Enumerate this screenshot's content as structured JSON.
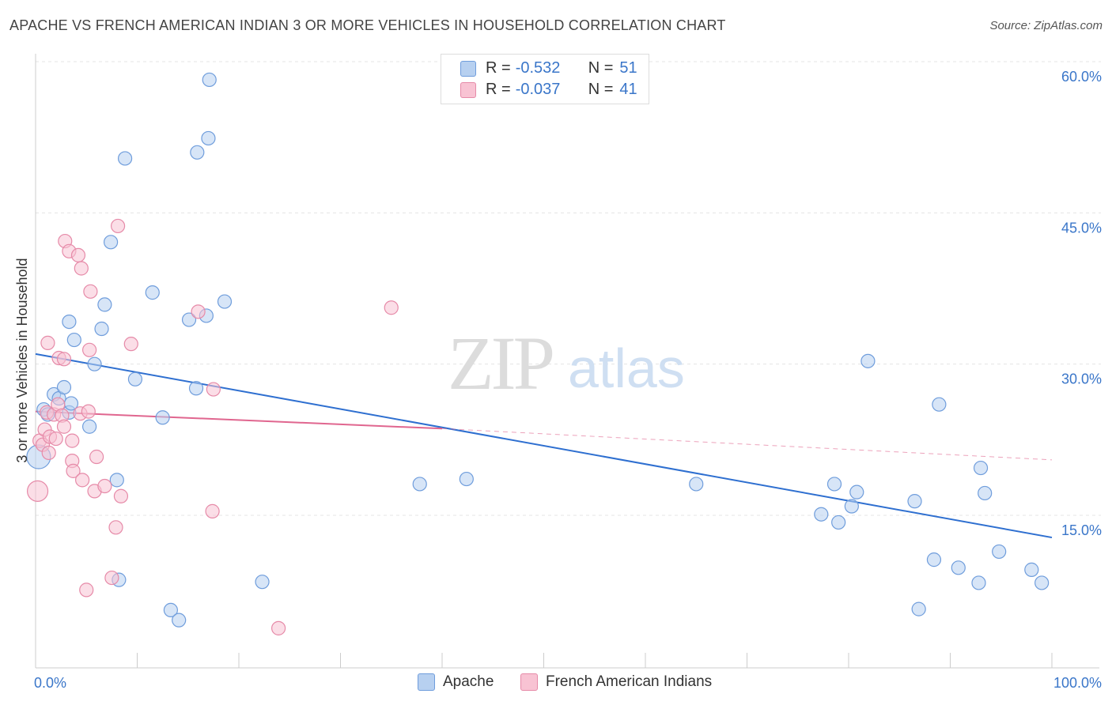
{
  "title": "APACHE VS FRENCH AMERICAN INDIAN 3 OR MORE VEHICLES IN HOUSEHOLD CORRELATION CHART",
  "source": "Source: ZipAtlas.com",
  "watermark": {
    "zip": "ZIP",
    "atlas": "atlas"
  },
  "legend": {
    "rows": [
      {
        "r_label": "R =",
        "r_value": "-0.532",
        "n_label": "N =",
        "n_value": "51"
      },
      {
        "r_label": "R =",
        "r_value": "-0.037",
        "n_label": "N =",
        "n_value": "41"
      }
    ]
  },
  "bottom_legend": {
    "apache": "Apache",
    "french": "French American Indians"
  },
  "colors": {
    "apache_fill": "#b7d0f0",
    "apache_stroke": "#6f9ddc",
    "apache_line": "#2e6fd0",
    "french_fill": "#f8c3d3",
    "french_stroke": "#e68aa8",
    "french_line": "#e0668f",
    "axis_text": "#3a76c9",
    "grid": "#e4e4e4"
  },
  "chart_data": {
    "type": "scatter",
    "title": "APACHE VS FRENCH AMERICAN INDIAN 3 OR MORE VEHICLES IN HOUSEHOLD CORRELATION CHART",
    "xlabel": "",
    "ylabel": "3 or more Vehicles in Household",
    "x_tick_labels": [
      "0.0%",
      "100.0%"
    ],
    "y_tick_labels": [
      "15.0%",
      "30.0%",
      "45.0%",
      "60.0%"
    ],
    "y_ticks": [
      15,
      30,
      45,
      60
    ],
    "xlim": [
      0,
      100
    ],
    "ylim": [
      0,
      62
    ],
    "grid": true,
    "legend_position": "top-center",
    "series": [
      {
        "name": "Apache",
        "r": -0.532,
        "n": 51,
        "trend": {
          "x0": 0,
          "y0": 31.0,
          "x1": 100,
          "y1": 12.8
        },
        "points": [
          [
            0.3,
            20.8
          ],
          [
            0.8,
            25.5
          ],
          [
            1.2,
            25.0
          ],
          [
            1.8,
            27.0
          ],
          [
            2.3,
            26.6
          ],
          [
            2.8,
            27.7
          ],
          [
            3.3,
            25.2
          ],
          [
            3.5,
            26.1
          ],
          [
            3.3,
            34.2
          ],
          [
            3.8,
            32.4
          ],
          [
            5.3,
            23.8
          ],
          [
            5.8,
            30.0
          ],
          [
            6.5,
            33.5
          ],
          [
            6.8,
            35.9
          ],
          [
            7.4,
            42.1
          ],
          [
            8.0,
            18.5
          ],
          [
            8.2,
            8.6
          ],
          [
            8.8,
            50.4
          ],
          [
            9.8,
            28.5
          ],
          [
            11.5,
            37.1
          ],
          [
            12.5,
            24.7
          ],
          [
            13.3,
            5.6
          ],
          [
            14.1,
            4.6
          ],
          [
            15.1,
            34.4
          ],
          [
            15.8,
            27.6
          ],
          [
            15.9,
            51.0
          ],
          [
            16.8,
            34.8
          ],
          [
            17.0,
            52.4
          ],
          [
            17.1,
            58.2
          ],
          [
            18.6,
            36.2
          ],
          [
            22.3,
            8.4
          ],
          [
            37.8,
            18.1
          ],
          [
            42.4,
            18.6
          ],
          [
            65.0,
            18.1
          ],
          [
            77.3,
            15.1
          ],
          [
            78.6,
            18.1
          ],
          [
            79.0,
            14.3
          ],
          [
            80.3,
            15.9
          ],
          [
            80.8,
            17.3
          ],
          [
            81.9,
            30.3
          ],
          [
            86.5,
            16.4
          ],
          [
            86.9,
            5.7
          ],
          [
            88.4,
            10.6
          ],
          [
            88.9,
            26.0
          ],
          [
            90.8,
            9.8
          ],
          [
            92.8,
            8.3
          ],
          [
            93.0,
            19.7
          ],
          [
            93.4,
            17.2
          ],
          [
            94.8,
            11.4
          ],
          [
            98.0,
            9.6
          ],
          [
            99.0,
            8.3
          ]
        ]
      },
      {
        "name": "French American Indians",
        "r": -0.037,
        "n": 41,
        "trend": {
          "x0": 0,
          "y0": 25.3,
          "x1": 40,
          "y1": 23.6
        },
        "trend_dashed": {
          "x0": 40,
          "y0": 23.6,
          "x1": 100,
          "y1": 20.5
        },
        "points": [
          [
            0.2,
            17.4
          ],
          [
            0.4,
            22.4
          ],
          [
            0.7,
            22.0
          ],
          [
            0.9,
            23.5
          ],
          [
            1.1,
            25.2
          ],
          [
            1.3,
            21.2
          ],
          [
            1.2,
            32.1
          ],
          [
            1.4,
            22.8
          ],
          [
            1.8,
            25.0
          ],
          [
            2.0,
            22.6
          ],
          [
            2.2,
            26.0
          ],
          [
            2.3,
            30.6
          ],
          [
            2.6,
            24.9
          ],
          [
            2.8,
            30.5
          ],
          [
            2.8,
            23.8
          ],
          [
            2.9,
            42.2
          ],
          [
            3.3,
            41.2
          ],
          [
            3.6,
            22.4
          ],
          [
            3.6,
            20.4
          ],
          [
            3.7,
            19.4
          ],
          [
            4.2,
            40.8
          ],
          [
            4.4,
            25.1
          ],
          [
            4.5,
            39.5
          ],
          [
            4.6,
            18.5
          ],
          [
            5.0,
            7.6
          ],
          [
            5.3,
            31.4
          ],
          [
            5.4,
            37.2
          ],
          [
            5.8,
            17.4
          ],
          [
            6.0,
            20.8
          ],
          [
            6.8,
            17.9
          ],
          [
            7.5,
            8.8
          ],
          [
            7.9,
            13.8
          ],
          [
            8.1,
            43.7
          ],
          [
            8.4,
            16.9
          ],
          [
            9.4,
            32.0
          ],
          [
            16.0,
            35.2
          ],
          [
            17.4,
            15.4
          ],
          [
            17.5,
            27.5
          ],
          [
            23.9,
            3.8
          ],
          [
            35.0,
            35.6
          ],
          [
            5.2,
            25.3
          ]
        ]
      }
    ]
  }
}
